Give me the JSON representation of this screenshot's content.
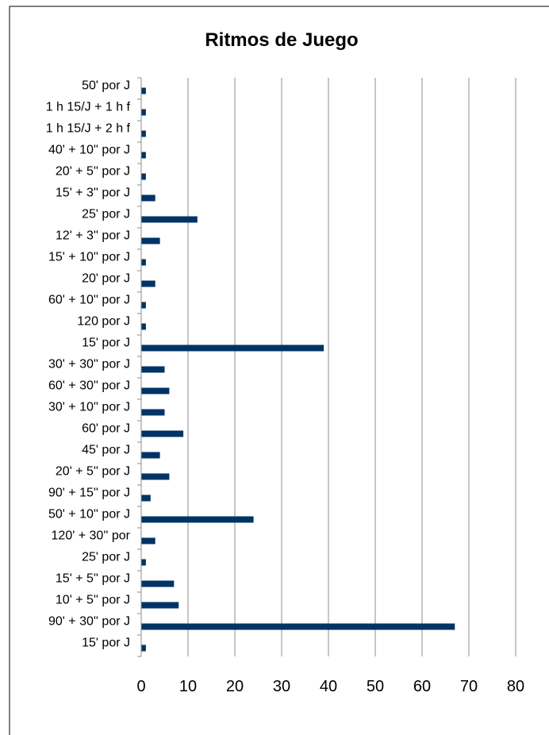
{
  "chart_data": {
    "type": "bar",
    "orientation": "horizontal",
    "title": "Ritmos de Juego",
    "xlabel": "",
    "ylabel": "",
    "xlim": [
      0,
      80
    ],
    "x_ticks": [
      "0",
      "10",
      "20",
      "30",
      "40",
      "50",
      "60",
      "70",
      "80"
    ],
    "grid": true,
    "legend": "none",
    "bar_color": "#003366",
    "categories": [
      "50' por J",
      "1 h 15/J + 1 h f",
      "1 h 15/J + 2 h f",
      "40' + 10'' por J",
      "20' + 5'' por J",
      "15' + 3'' por J",
      "25' por J",
      "12' + 3'' por J",
      "15' + 10'' por J",
      "20' por J",
      "60' + 10'' por J",
      "120 por J",
      "15' por J",
      "30' + 30'' por J",
      "60' + 30'' por J",
      "30' + 10'' por J",
      "60' por J",
      "45' por J",
      "20' + 5'' por J",
      "90' + 15'' por J",
      "50' + 10'' por J",
      "120' + 30'' por",
      "25'  por J",
      "15' + 5'' por J",
      "10' + 5'' por J",
      "90' + 30'' por J",
      "15'  por J"
    ],
    "values": [
      1,
      1,
      1,
      1,
      1,
      3,
      12,
      4,
      1,
      3,
      1,
      1,
      39,
      5,
      6,
      5,
      9,
      4,
      6,
      2,
      24,
      3,
      1,
      7,
      8,
      67,
      1
    ]
  }
}
